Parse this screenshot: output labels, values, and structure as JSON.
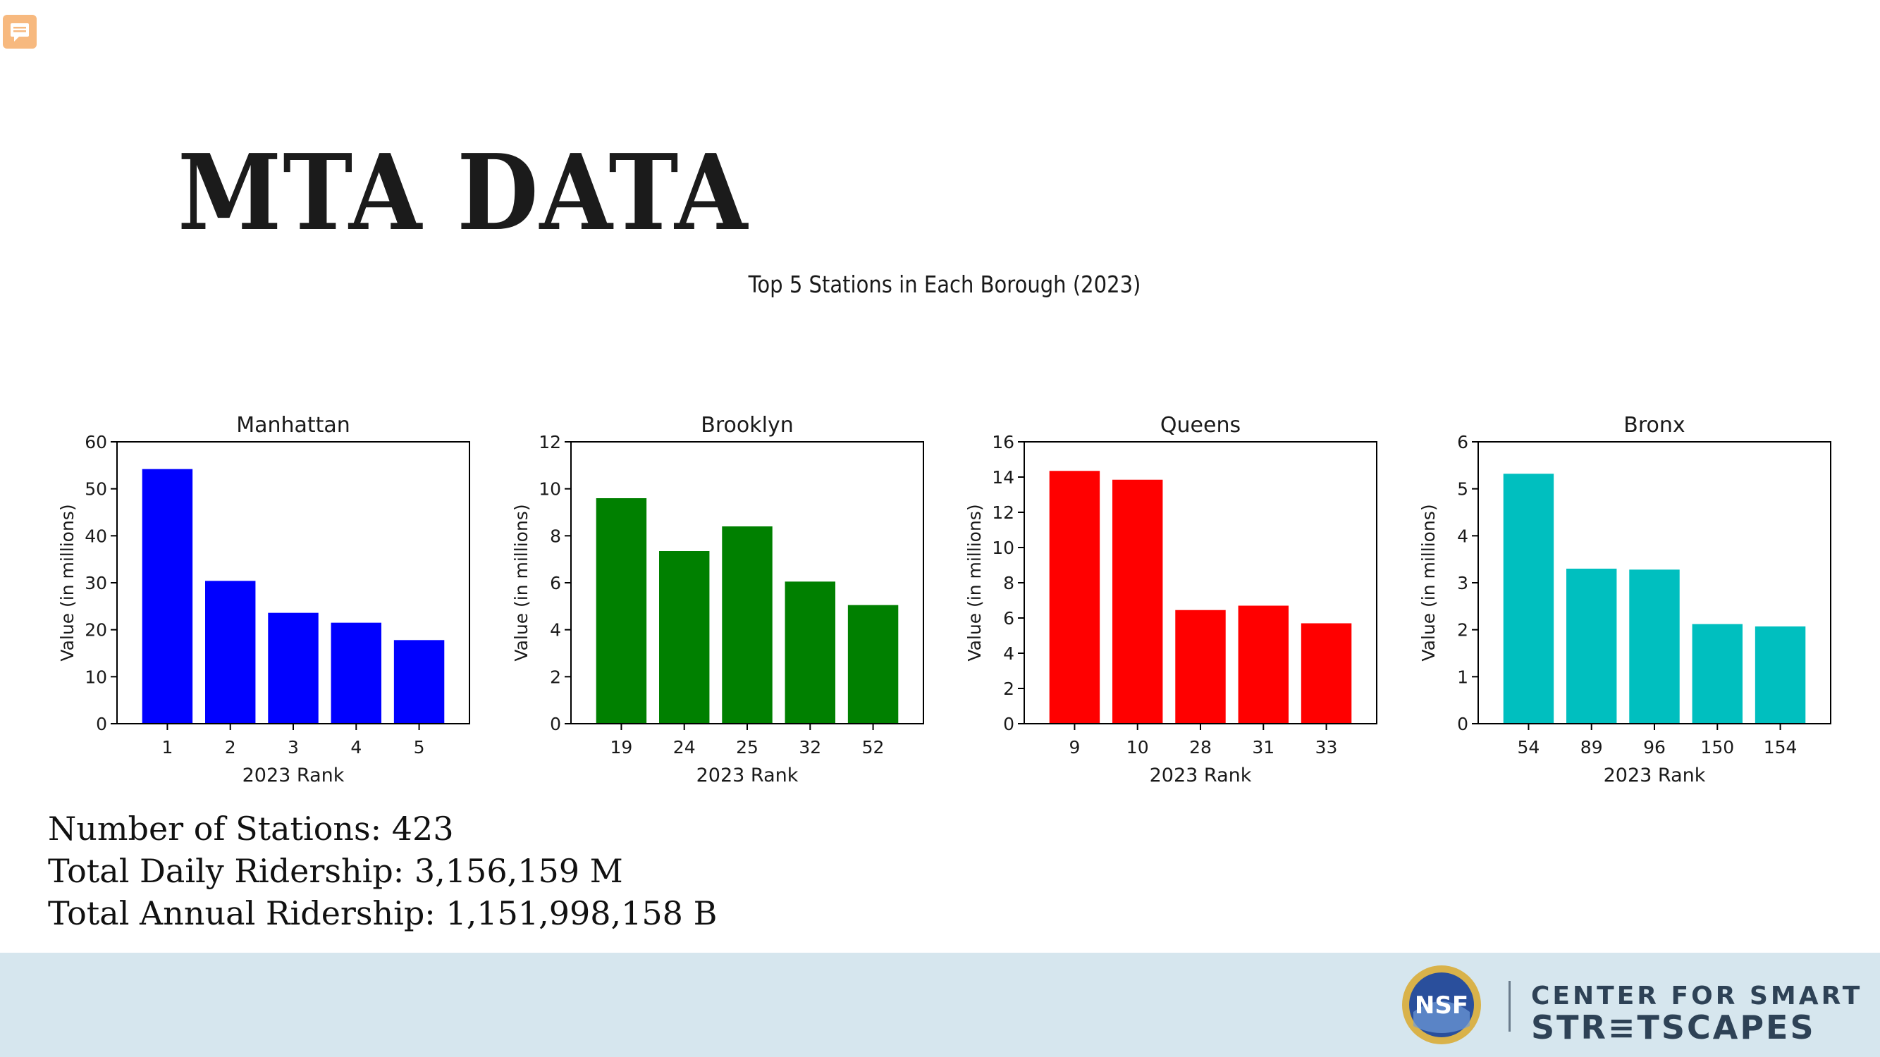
{
  "slide": {
    "title": "MTA DATA"
  },
  "stats": {
    "stations": "Number of Stations:  423",
    "daily": "Total Daily Ridership:  3,156,159 M",
    "annual": "Total Annual Ridership:  1,151,998,158 B"
  },
  "footer": {
    "logo_line1": "CENTER FOR SMART",
    "logo_line2": "STR≡TSCAPES",
    "nsf_text": "NSF"
  },
  "figure_title": "Top 5 Stations in Each Borough (2023)",
  "chart_data": [
    {
      "type": "bar",
      "title": "Manhattan",
      "categories": [
        "1",
        "2",
        "3",
        "4",
        "5"
      ],
      "values": [
        54.2,
        30.4,
        23.6,
        21.5,
        17.8
      ],
      "xlabel": "2023 Rank",
      "ylabel": "Value (in millions)",
      "ylim": [
        0,
        60
      ],
      "yticks": [
        0,
        10,
        20,
        30,
        40,
        50,
        60
      ],
      "color": "#0000ff"
    },
    {
      "type": "bar",
      "title": "Brooklyn",
      "categories": [
        "19",
        "24",
        "25",
        "32",
        "52"
      ],
      "values": [
        9.6,
        7.35,
        8.4,
        6.05,
        5.05
      ],
      "xlabel": "2023 Rank",
      "ylabel": "Value (in millions)",
      "ylim": [
        0,
        12
      ],
      "yticks": [
        0,
        2,
        4,
        6,
        8,
        10,
        12
      ],
      "color": "#008000"
    },
    {
      "type": "bar",
      "title": "Queens",
      "categories": [
        "9",
        "10",
        "28",
        "31",
        "33"
      ],
      "values": [
        14.35,
        13.85,
        6.45,
        6.7,
        5.7
      ],
      "xlabel": "2023 Rank",
      "ylabel": "Value (in millions)",
      "ylim": [
        0,
        16
      ],
      "yticks": [
        0,
        2,
        4,
        6,
        8,
        10,
        12,
        14,
        16
      ],
      "color": "#ff0000"
    },
    {
      "type": "bar",
      "title": "Bronx",
      "categories": [
        "54",
        "89",
        "96",
        "150",
        "154"
      ],
      "values": [
        5.32,
        3.3,
        3.28,
        2.12,
        2.07
      ],
      "xlabel": "2023 Rank",
      "ylabel": "Value (in millions)",
      "ylim": [
        0,
        6
      ],
      "yticks": [
        0,
        1,
        2,
        3,
        4,
        5,
        6
      ],
      "color": "#00bfbf"
    }
  ]
}
